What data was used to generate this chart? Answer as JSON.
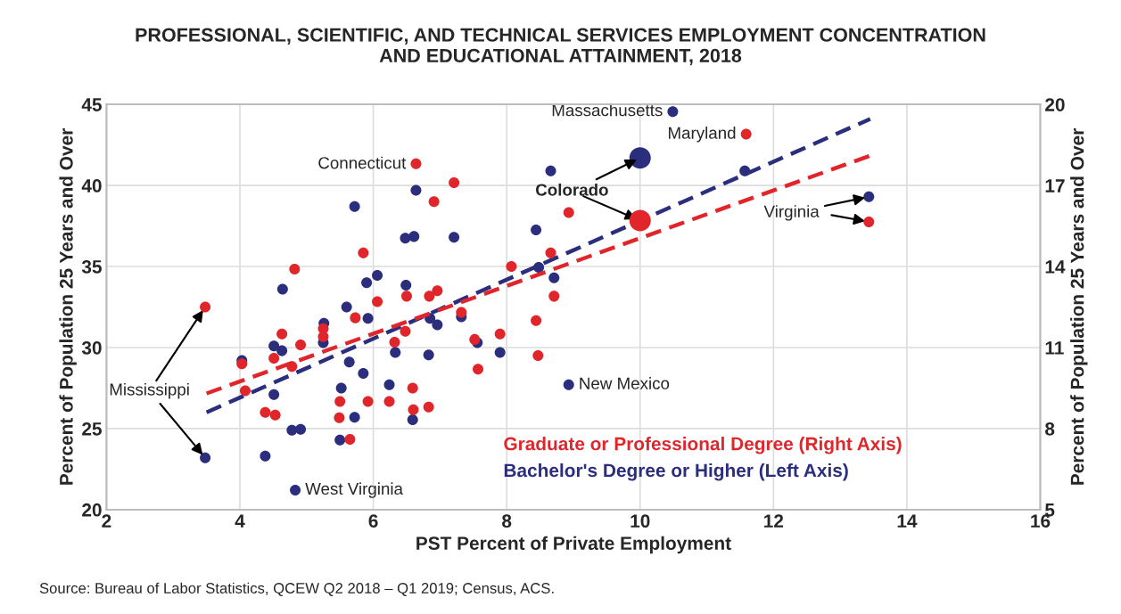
{
  "chart_data": {
    "type": "bubble",
    "title": "PROFESSIONAL, SCIENTIFIC, AND TECHNICAL SERVICES EMPLOYMENT CONCENTRATION\nAND EDUCATIONAL ATTAINMENT, 2018",
    "xlabel": "PST Percent of Private Employment",
    "ylabel": "Percent of Population 25 Years and Over",
    "y2label": "Percent of Population 25 Years and Over",
    "xlim": [
      2,
      16
    ],
    "xticks": [
      2,
      4,
      6,
      8,
      10,
      12,
      14,
      16
    ],
    "ylim": [
      20,
      45
    ],
    "yticks": [
      20,
      25,
      30,
      35,
      40,
      45
    ],
    "y2lim": [
      5,
      20
    ],
    "y2ticks": [
      5,
      8,
      11,
      14,
      17,
      20
    ],
    "grid": true,
    "legend": "bottom right",
    "marker": "circle",
    "series": [
      {
        "name": "Graduate or Professional Degree (Right Axis)",
        "color": "#e0262b",
        "axis": "y2",
        "x": [
          3.48,
          4.03,
          4.08,
          4.38,
          4.53,
          4.51,
          4.63,
          4.78,
          4.91,
          4.82,
          5.25,
          5.25,
          5.5,
          5.49,
          5.65,
          5.73,
          5.85,
          5.92,
          6.06,
          6.32,
          6.24,
          6.48,
          6.5,
          6.59,
          6.6,
          6.64,
          6.83,
          6.84,
          6.96,
          6.91,
          7.21,
          7.32,
          7.52,
          7.57,
          7.9,
          8.07,
          8.44,
          8.47,
          8.66,
          8.71,
          8.93,
          10.0,
          11.59,
          13.43
        ],
        "values": [
          12.5,
          10.4,
          9.4,
          8.6,
          8.5,
          10.6,
          11.5,
          10.3,
          11.1,
          13.9,
          11.7,
          11.4,
          9.0,
          8.4,
          7.6,
          12.1,
          14.5,
          9.0,
          12.7,
          11.2,
          9.0,
          11.6,
          12.9,
          9.5,
          8.7,
          17.8,
          8.8,
          12.9,
          13.1,
          16.4,
          17.1,
          12.3,
          11.3,
          10.2,
          11.5,
          14.0,
          12.0,
          10.7,
          14.5,
          12.9,
          16.0,
          15.7,
          18.9,
          15.65
        ],
        "sizes": [
          0.25,
          0.25,
          0.25,
          0.25,
          0.25,
          0.25,
          0.25,
          0.25,
          0.25,
          0.25,
          0.25,
          0.25,
          0.25,
          0.25,
          0.25,
          0.25,
          0.25,
          0.25,
          0.25,
          0.25,
          0.25,
          0.25,
          0.25,
          0.25,
          0.25,
          0.25,
          0.25,
          0.25,
          0.25,
          0.25,
          0.25,
          0.25,
          0.25,
          0.25,
          0.25,
          0.25,
          0.25,
          0.25,
          0.25,
          0.25,
          0.25,
          1,
          0.25,
          0.25
        ]
      },
      {
        "name": "Bachelor's Degree or Higher (Left Axis)",
        "color": "#2a2e7c",
        "axis": "y",
        "x": [
          3.48,
          4.38,
          4.03,
          4.51,
          4.63,
          4.51,
          4.64,
          4.78,
          4.91,
          4.83,
          5.26,
          5.25,
          5.6,
          5.9,
          6.06,
          5.72,
          5.92,
          5.64,
          5.85,
          5.52,
          5.72,
          5.5,
          6.24,
          6.33,
          6.49,
          6.48,
          6.61,
          6.64,
          6.59,
          6.83,
          6.85,
          6.96,
          7.21,
          7.32,
          7.56,
          7.9,
          8.44,
          8.48,
          8.71,
          8.66,
          8.93,
          10.0,
          10.49,
          11.57,
          13.43
        ],
        "values": [
          23.2,
          23.3,
          29.2,
          30.1,
          29.8,
          27.1,
          33.6,
          24.9,
          24.95,
          21.2,
          31.5,
          30.3,
          32.5,
          34.0,
          34.45,
          38.7,
          31.8,
          29.1,
          28.4,
          27.5,
          25.7,
          24.3,
          27.7,
          29.7,
          33.85,
          36.75,
          36.85,
          39.7,
          25.55,
          29.55,
          31.8,
          31.4,
          36.8,
          31.9,
          30.3,
          29.7,
          37.25,
          34.95,
          34.3,
          40.9,
          27.7,
          41.7,
          44.55,
          40.9,
          39.3
        ],
        "sizes": [
          0.25,
          0.25,
          0.25,
          0.25,
          0.25,
          0.25,
          0.25,
          0.25,
          0.25,
          0.25,
          0.25,
          0.25,
          0.25,
          0.25,
          0.25,
          0.25,
          0.25,
          0.25,
          0.25,
          0.25,
          0.25,
          0.25,
          0.25,
          0.25,
          0.25,
          0.25,
          0.25,
          0.25,
          0.25,
          0.25,
          0.25,
          0.25,
          0.25,
          0.25,
          0.25,
          0.25,
          0.25,
          0.25,
          0.25,
          0.25,
          0.25,
          1,
          0.25,
          0.25,
          0.25
        ]
      },
      {
        "type": "line",
        "color": "#e0262b",
        "axis": "y2",
        "line_style": "dashed",
        "marker": "none",
        "x": [
          3.5,
          13.45
        ],
        "values": [
          9.3,
          18.1
        ]
      },
      {
        "type": "line",
        "color": "#2a2e7c",
        "axis": "y",
        "line_style": "dashed",
        "marker": "none",
        "x": [
          3.5,
          13.45
        ],
        "values": [
          26.0,
          44.1
        ]
      }
    ],
    "annotations": [
      {
        "text": "Connecticut",
        "x": 6.64,
        "y": 41.3
      },
      {
        "text": "Massachusetts",
        "x": 10.49,
        "y": 44.55
      },
      {
        "text": "Maryland",
        "x": 11.59,
        "y": 43.15
      },
      {
        "text": "Colorado",
        "x": 10.0,
        "y": 41.7
      },
      {
        "text": "Virginia",
        "x": 13.43,
        "y": 39.3
      },
      {
        "text": "Mississippi",
        "x": 3.48,
        "y": 23.2
      },
      {
        "text": "West Virginia",
        "x": 4.83,
        "y": 21.2
      },
      {
        "text": "New Mexico",
        "x": 8.93,
        "y": 27.7
      },
      "Source: Bureau of Labor Statistics, QCEW Q2 2018 – Q1 2019; Census, ACS."
    ]
  }
}
